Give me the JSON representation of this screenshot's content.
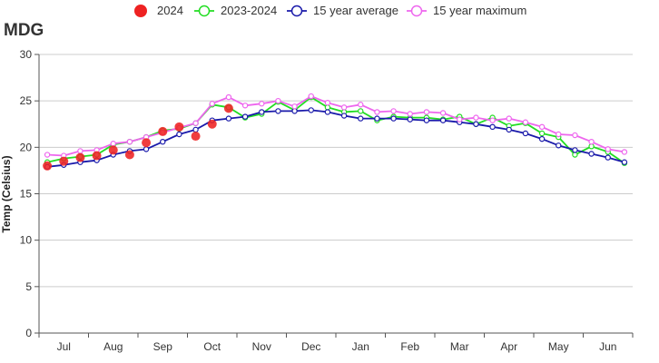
{
  "chart_data": {
    "type": "line",
    "title": "MDG",
    "ylabel": "Temp (Celsius)",
    "xlabel": "",
    "ylim": [
      0,
      30
    ],
    "yticks": [
      0,
      5,
      10,
      15,
      20,
      25,
      30
    ],
    "grid": true,
    "legend_position": "top",
    "month_labels": [
      "Jul",
      "Aug",
      "Sep",
      "Oct",
      "Nov",
      "Dec",
      "Jan",
      "Feb",
      "Mar",
      "Apr",
      "May",
      "Jun"
    ],
    "dekads_per_month": 3,
    "series": [
      {
        "name": "2024",
        "style": "points",
        "color": "#ee2222",
        "values": [
          18.0,
          18.5,
          18.9,
          19.1,
          19.7,
          19.2,
          20.5,
          21.7,
          22.2,
          21.2,
          22.5,
          24.2
        ]
      },
      {
        "name": "2023-2024",
        "style": "line",
        "color": "#22dd22",
        "values": [
          18.4,
          18.8,
          19.0,
          19.2,
          20.3,
          20.6,
          21.1,
          21.8,
          22.0,
          22.6,
          24.6,
          24.3,
          23.2,
          23.6,
          24.9,
          24.0,
          25.4,
          24.3,
          23.8,
          23.9,
          22.9,
          23.3,
          23.2,
          23.2,
          23.0,
          23.3,
          22.5,
          23.2,
          22.3,
          22.6,
          21.5,
          21.1,
          19.2,
          20.1,
          19.5,
          18.3
        ]
      },
      {
        "name": "15 year average",
        "style": "line",
        "color": "#1a1aaa",
        "values": [
          17.9,
          18.1,
          18.4,
          18.6,
          19.2,
          19.6,
          19.8,
          20.6,
          21.4,
          21.9,
          22.9,
          23.1,
          23.3,
          23.8,
          23.9,
          23.9,
          24.0,
          23.8,
          23.4,
          23.1,
          23.1,
          23.1,
          23.0,
          22.9,
          22.9,
          22.7,
          22.5,
          22.2,
          21.9,
          21.5,
          20.9,
          20.2,
          19.7,
          19.3,
          18.9,
          18.4
        ]
      },
      {
        "name": "15 year maximum",
        "style": "line",
        "color": "#ee66ee",
        "values": [
          19.2,
          19.1,
          19.6,
          19.7,
          20.4,
          20.6,
          21.1,
          21.6,
          22.1,
          22.6,
          24.7,
          25.4,
          24.5,
          24.7,
          25.0,
          24.4,
          25.5,
          24.8,
          24.3,
          24.6,
          23.8,
          23.9,
          23.6,
          23.8,
          23.7,
          23.0,
          23.2,
          22.9,
          23.1,
          22.7,
          22.2,
          21.4,
          21.3,
          20.6,
          19.8,
          19.5
        ]
      }
    ]
  }
}
